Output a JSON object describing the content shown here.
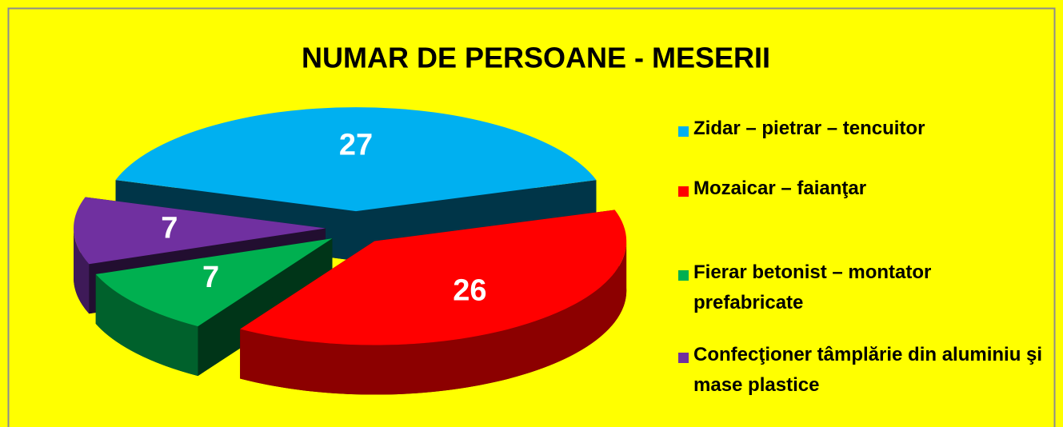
{
  "chart_data": {
    "type": "pie3d",
    "title": "NUMAR DE PERSOANE - MESERII",
    "categories": [
      "Zidar – pietrar – tencuitor",
      "Mozaicar – faianţar",
      "Fierar betonist – montator prefabricate",
      "Confecţioner tâmplărie din aluminiu şi mase plastice"
    ],
    "values": [
      27,
      26,
      7,
      7
    ],
    "colors": [
      "#00b0f0",
      "#ff0000",
      "#00b050",
      "#7030a0"
    ],
    "legend": "right"
  }
}
